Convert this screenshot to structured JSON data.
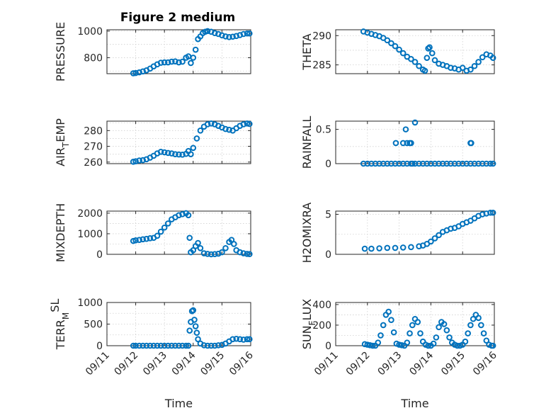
{
  "figure": {
    "title": "Figure 2 medium",
    "marker_color": "#0072bd",
    "frame_color": "#262626",
    "grid_color": "#d0d0d0"
  },
  "chart_data": [
    {
      "type": "scatter",
      "ylabel": "PRESSURE",
      "xlabel": "",
      "xlim": [
        "09/11",
        "09/16"
      ],
      "ylim": [
        680,
        1010
      ],
      "yticks": [
        800,
        1000
      ],
      "yticklabels": [
        "800",
        "1000"
      ],
      "x": [
        "09/11 22:00",
        "09/12 00:00",
        "09/12 03:00",
        "09/12 06:00",
        "09/12 09:00",
        "09/12 12:00",
        "09/12 15:00",
        "09/12 18:00",
        "09/12 21:00",
        "09/13 00:00",
        "09/13 03:00",
        "09/13 06:00",
        "09/13 09:00",
        "09/13 12:00",
        "09/13 15:00",
        "09/13 18:00",
        "09/13 20:00",
        "09/13 22:00",
        "09/14 00:00",
        "09/14 02:00",
        "09/14 04:00",
        "09/14 06:00",
        "09/14 08:00",
        "09/14 10:00",
        "09/14 12:00",
        "09/14 15:00",
        "09/14 18:00",
        "09/14 21:00",
        "09/15 00:00",
        "09/15 03:00",
        "09/15 06:00",
        "09/15 09:00",
        "09/15 12:00",
        "09/15 15:00",
        "09/15 18:00",
        "09/15 21:00",
        "09/15 23:00"
      ],
      "y": [
        683,
        685,
        690,
        697,
        705,
        718,
        735,
        750,
        762,
        765,
        765,
        770,
        772,
        765,
        770,
        800,
        810,
        760,
        800,
        860,
        940,
        960,
        985,
        995,
        1000,
        995,
        985,
        978,
        968,
        960,
        955,
        958,
        963,
        970,
        978,
        982,
        982
      ]
    },
    {
      "type": "scatter",
      "ylabel": "THETA",
      "xlabel": "",
      "xlim": [
        "09/11",
        "09/16"
      ],
      "ylim": [
        283.5,
        291
      ],
      "yticks": [
        285,
        290
      ],
      "yticklabels": [
        "285",
        "290"
      ],
      "x": [
        "09/11 21:00",
        "09/12 00:00",
        "09/12 03:00",
        "09/12 06:00",
        "09/12 09:00",
        "09/12 12:00",
        "09/12 15:00",
        "09/12 18:00",
        "09/12 21:00",
        "09/13 00:00",
        "09/13 03:00",
        "09/13 06:00",
        "09/13 09:00",
        "09/13 12:00",
        "09/13 15:00",
        "09/13 18:00",
        "09/13 19:30",
        "09/13 21:00",
        "09/13 22:00",
        "09/13 23:00",
        "09/14 01:00",
        "09/14 03:00",
        "09/14 06:00",
        "09/14 09:00",
        "09/14 12:00",
        "09/14 15:00",
        "09/14 18:00",
        "09/14 21:00",
        "09/15 00:00",
        "09/15 03:00",
        "09/15 06:00",
        "09/15 09:00",
        "09/15 12:00",
        "09/15 15:00",
        "09/15 18:00",
        "09/15 21:00",
        "09/15 23:00"
      ],
      "y": [
        290.7,
        290.5,
        290.3,
        290.1,
        289.9,
        289.6,
        289.2,
        288.7,
        288.2,
        287.6,
        287.0,
        286.4,
        286.0,
        285.5,
        284.8,
        284.2,
        284.0,
        286.2,
        287.8,
        288.0,
        287.0,
        285.8,
        285.2,
        285.0,
        284.8,
        284.5,
        284.4,
        284.2,
        284.5,
        284.0,
        284.2,
        284.8,
        285.5,
        286.3,
        286.8,
        286.6,
        286.2
      ]
    },
    {
      "type": "scatter",
      "ylabel": "AIR_TEMP",
      "ylabel_base": "AIR",
      "ylabel_sub": "T",
      "ylabel_rest": "EMP",
      "xlabel": "",
      "xlim": [
        "09/11",
        "09/16"
      ],
      "ylim": [
        259,
        286
      ],
      "yticks": [
        260,
        270,
        280
      ],
      "yticklabels": [
        "260",
        "270",
        "280"
      ],
      "x": [
        "09/11 22:00",
        "09/12 00:00",
        "09/12 03:00",
        "09/12 06:00",
        "09/12 09:00",
        "09/12 12:00",
        "09/12 15:00",
        "09/12 18:00",
        "09/12 21:00",
        "09/13 00:00",
        "09/13 03:00",
        "09/13 06:00",
        "09/13 09:00",
        "09/13 12:00",
        "09/13 15:00",
        "09/13 18:00",
        "09/13 20:00",
        "09/13 22:00",
        "09/14 00:00",
        "09/14 03:00",
        "09/14 06:00",
        "09/14 09:00",
        "09/14 12:00",
        "09/14 15:00",
        "09/14 18:00",
        "09/14 21:00",
        "09/15 00:00",
        "09/15 03:00",
        "09/15 06:00",
        "09/15 09:00",
        "09/15 12:00",
        "09/15 15:00",
        "09/15 18:00",
        "09/15 21:00",
        "09/15 23:00"
      ],
      "y": [
        260.2,
        260.5,
        261.0,
        261.2,
        261.8,
        262.8,
        264.0,
        265.5,
        266.5,
        266.2,
        265.8,
        265.5,
        265.0,
        264.8,
        264.7,
        265.2,
        267.0,
        265.0,
        269.0,
        275.0,
        280.0,
        282.5,
        284.0,
        284.5,
        284.0,
        283.0,
        282.0,
        281.0,
        280.5,
        280.0,
        281.5,
        283.0,
        284.0,
        284.5,
        284.2
      ]
    },
    {
      "type": "scatter",
      "ylabel": "RAINFALL",
      "xlabel": "",
      "xlim": [
        "09/11",
        "09/16"
      ],
      "ylim": [
        0,
        0.62
      ],
      "yticks": [
        0,
        0.5
      ],
      "yticklabels": [
        "0",
        "0.5"
      ],
      "x": [
        "09/11 21:00",
        "09/12 00:00",
        "09/12 03:00",
        "09/12 06:00",
        "09/12 09:00",
        "09/12 12:00",
        "09/12 15:00",
        "09/12 18:00",
        "09/12 21:00",
        "09/13 00:00",
        "09/13 03:00",
        "09/13 06:00",
        "09/13 09:00",
        "09/13 12:00",
        "09/13 15:00",
        "09/13 18:00",
        "09/13 21:00",
        "09/14 00:00",
        "09/14 03:00",
        "09/14 06:00",
        "09/14 09:00",
        "09/14 12:00",
        "09/14 15:00",
        "09/14 18:00",
        "09/14 21:00",
        "09/15 00:00",
        "09/15 03:00",
        "09/15 06:00",
        "09/15 09:00",
        "09/15 12:00",
        "09/15 15:00",
        "09/15 18:00",
        "09/15 21:00",
        "09/15 23:00",
        "09/12 21:30",
        "09/13 03:00",
        "09/13 05:00",
        "09/13 06:00",
        "09/13 08:00",
        "09/13 09:00",
        "09/13 12:00",
        "09/13 10:00",
        "09/15 06:00",
        "09/15 06:30"
      ],
      "y": [
        0,
        0,
        0,
        0,
        0,
        0,
        0,
        0,
        0,
        0,
        0,
        0,
        0,
        0,
        0,
        0,
        0,
        0,
        0,
        0,
        0,
        0,
        0,
        0,
        0,
        0,
        0,
        0,
        0,
        0,
        0,
        0,
        0,
        0,
        0.3,
        0.3,
        0.5,
        0.3,
        0.3,
        0.3,
        0.6,
        0,
        0.3,
        0.3
      ]
    },
    {
      "type": "scatter",
      "ylabel": "MIXDEPTH",
      "xlabel": "",
      "xlim": [
        "09/11",
        "09/16"
      ],
      "ylim": [
        0,
        2100
      ],
      "yticks": [
        0,
        1000,
        2000
      ],
      "yticklabels": [
        "0",
        "1000",
        "2000"
      ],
      "x": [
        "09/11 22:00",
        "09/12 00:00",
        "09/12 03:00",
        "09/12 06:00",
        "09/12 09:00",
        "09/12 12:00",
        "09/12 15:00",
        "09/12 18:00",
        "09/12 21:00",
        "09/13 00:00",
        "09/13 03:00",
        "09/13 06:00",
        "09/13 09:00",
        "09/13 12:00",
        "09/13 15:00",
        "09/13 18:00",
        "09/13 20:00",
        "09/13 21:00",
        "09/13 22:00",
        "09/14 00:00",
        "09/14 02:00",
        "09/14 04:00",
        "09/14 06:00",
        "09/14 09:00",
        "09/14 12:00",
        "09/14 15:00",
        "09/14 18:00",
        "09/14 21:00",
        "09/15 00:00",
        "09/15 03:00",
        "09/15 06:00",
        "09/15 08:00",
        "09/15 10:00",
        "09/15 12:00",
        "09/15 15:00",
        "09/15 18:00",
        "09/15 21:00",
        "09/15 23:00"
      ],
      "y": [
        650,
        680,
        700,
        730,
        750,
        780,
        800,
        900,
        1100,
        1300,
        1500,
        1700,
        1800,
        1900,
        1950,
        2000,
        1900,
        800,
        100,
        200,
        400,
        550,
        300,
        50,
        20,
        0,
        10,
        30,
        100,
        300,
        600,
        700,
        500,
        200,
        100,
        50,
        20,
        10
      ]
    },
    {
      "type": "scatter",
      "ylabel": "H2OMIXRA",
      "xlabel": "",
      "xlim": [
        "09/11",
        "09/16"
      ],
      "ylim": [
        0,
        5.4
      ],
      "yticks": [
        0,
        5
      ],
      "yticklabels": [
        "0",
        "5"
      ],
      "x": [
        "09/11 22:00",
        "09/12 03:00",
        "09/12 09:00",
        "09/12 15:00",
        "09/12 21:00",
        "09/13 03:00",
        "09/13 09:00",
        "09/13 15:00",
        "09/13 18:00",
        "09/13 21:00",
        "09/14 00:00",
        "09/14 03:00",
        "09/14 06:00",
        "09/14 09:00",
        "09/14 12:00",
        "09/14 15:00",
        "09/14 18:00",
        "09/14 21:00",
        "09/15 00:00",
        "09/15 03:00",
        "09/15 06:00",
        "09/15 09:00",
        "09/15 12:00",
        "09/15 15:00",
        "09/15 18:00",
        "09/15 21:00",
        "09/15 23:00"
      ],
      "y": [
        0.7,
        0.7,
        0.75,
        0.8,
        0.8,
        0.85,
        0.9,
        1.0,
        1.1,
        1.3,
        1.6,
        2.0,
        2.4,
        2.8,
        3.0,
        3.2,
        3.3,
        3.5,
        3.8,
        4.0,
        4.2,
        4.5,
        4.8,
        5.0,
        5.1,
        5.2,
        5.2
      ]
    },
    {
      "type": "scatter",
      "ylabel": "TERR_MSL",
      "ylabel_base": "TERR",
      "ylabel_sub": "M",
      "ylabel_sup": "SL",
      "xlabel": "Time",
      "xlim": [
        "09/11",
        "09/16"
      ],
      "ylim": [
        0,
        1000
      ],
      "yticks": [
        0,
        500,
        1000
      ],
      "yticklabels": [
        "0",
        "500",
        "1000"
      ],
      "xticks": [
        "09/11",
        "09/12",
        "09/13",
        "09/14",
        "09/15",
        "09/16"
      ],
      "xticklabels": [
        "09/11",
        "09/12",
        "09/13",
        "09/14",
        "09/15",
        "09/16"
      ],
      "x": [
        "09/11 22:00",
        "09/12 00:00",
        "09/12 03:00",
        "09/12 06:00",
        "09/12 09:00",
        "09/12 12:00",
        "09/12 15:00",
        "09/12 18:00",
        "09/12 21:00",
        "09/13 00:00",
        "09/13 03:00",
        "09/13 06:00",
        "09/13 09:00",
        "09/13 12:00",
        "09/13 15:00",
        "09/13 18:00",
        "09/13 20:00",
        "09/13 21:00",
        "09/13 22:00",
        "09/13 23:00",
        "09/14 00:00",
        "09/14 01:00",
        "09/14 02:00",
        "09/14 03:00",
        "09/14 04:00",
        "09/14 06:00",
        "09/14 09:00",
        "09/14 12:00",
        "09/14 15:00",
        "09/14 18:00",
        "09/14 21:00",
        "09/15 00:00",
        "09/15 03:00",
        "09/15 06:00",
        "09/15 09:00",
        "09/15 12:00",
        "09/15 15:00",
        "09/15 18:00",
        "09/15 21:00",
        "09/15 23:00"
      ],
      "y": [
        0,
        0,
        0,
        0,
        0,
        0,
        0,
        0,
        0,
        0,
        0,
        0,
        0,
        0,
        0,
        0,
        0,
        350,
        550,
        800,
        820,
        600,
        450,
        300,
        150,
        50,
        10,
        0,
        0,
        0,
        10,
        20,
        50,
        100,
        150,
        160,
        150,
        140,
        150,
        150
      ]
    },
    {
      "type": "scatter",
      "ylabel": "SUN_FLUX",
      "ylabel_base": "SUN",
      "ylabel_sub": "F",
      "ylabel_rest": "LUX",
      "xlabel": "Time",
      "xlim": [
        "09/11",
        "09/16"
      ],
      "ylim": [
        0,
        420
      ],
      "yticks": [
        0,
        200,
        400
      ],
      "yticklabels": [
        "0",
        "200",
        "400"
      ],
      "xticks": [
        "09/11",
        "09/12",
        "09/13",
        "09/14",
        "09/15",
        "09/16"
      ],
      "xticklabels": [
        "09/11",
        "09/12",
        "09/13",
        "09/14",
        "09/15",
        "09/16"
      ],
      "x": [
        "09/11 22:00",
        "09/12 00:00",
        "09/12 02:00",
        "09/12 04:00",
        "09/12 06:00",
        "09/12 08:00",
        "09/12 10:00",
        "09/12 12:00",
        "09/12 14:00",
        "09/12 16:00",
        "09/12 18:00",
        "09/12 20:00",
        "09/12 22:00",
        "09/13 00:00",
        "09/13 02:00",
        "09/13 04:00",
        "09/13 06:00",
        "09/13 08:00",
        "09/13 10:00",
        "09/13 12:00",
        "09/13 14:00",
        "09/13 16:00",
        "09/13 18:00",
        "09/13 20:00",
        "09/13 22:00",
        "09/14 00:00",
        "09/14 02:00",
        "09/14 04:00",
        "09/14 06:00",
        "09/14 08:00",
        "09/14 10:00",
        "09/14 12:00",
        "09/14 14:00",
        "09/14 16:00",
        "09/14 18:00",
        "09/14 20:00",
        "09/14 22:00",
        "09/15 00:00",
        "09/15 02:00",
        "09/15 04:00",
        "09/15 06:00",
        "09/15 08:00",
        "09/15 10:00",
        "09/15 12:00",
        "09/15 14:00",
        "09/15 16:00",
        "09/15 18:00",
        "09/15 20:00",
        "09/15 22:00",
        "09/15 23:00"
      ],
      "y": [
        15,
        10,
        5,
        0,
        0,
        30,
        100,
        200,
        300,
        330,
        250,
        130,
        20,
        10,
        5,
        0,
        30,
        120,
        200,
        260,
        230,
        120,
        40,
        10,
        0,
        0,
        20,
        80,
        180,
        230,
        210,
        150,
        80,
        30,
        10,
        0,
        0,
        10,
        40,
        120,
        200,
        260,
        300,
        270,
        200,
        120,
        50,
        10,
        0,
        0
      ]
    }
  ]
}
